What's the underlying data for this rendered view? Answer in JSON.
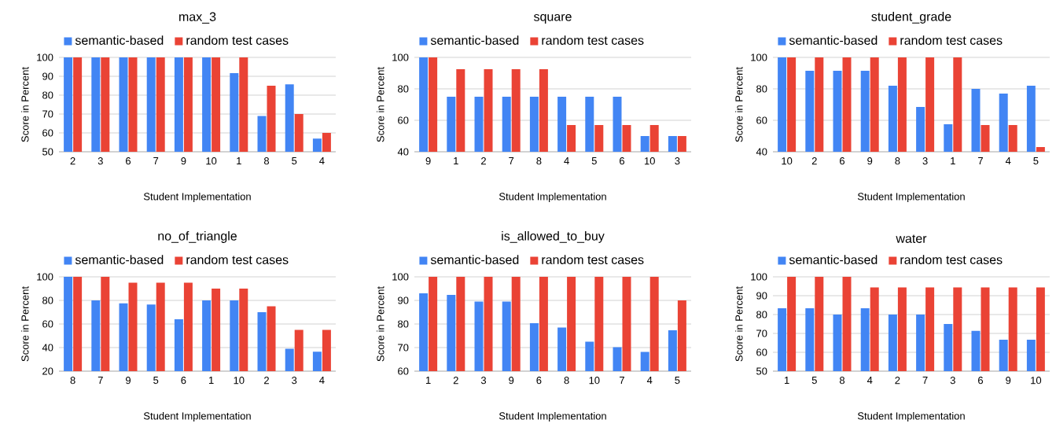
{
  "chart_data": [
    {
      "type": "bar",
      "title": "max_3",
      "xlabel": "Student Implementation",
      "ylabel": "Score in Percent",
      "categories": [
        "2",
        "3",
        "6",
        "7",
        "9",
        "10",
        "1",
        "8",
        "5",
        "4"
      ],
      "ylim": [
        50,
        100
      ],
      "yticks": [
        50,
        60,
        70,
        80,
        90,
        100
      ],
      "grid": "y",
      "legend": "top left",
      "series": [
        {
          "name": "semantic-based",
          "color": "#4285f4",
          "values": [
            100,
            100,
            100,
            100,
            100,
            100,
            91.7,
            69,
            85.7,
            57
          ]
        },
        {
          "name": "random test cases",
          "color": "#ea4335",
          "values": [
            100,
            100,
            100,
            100,
            100,
            100,
            100,
            85,
            70,
            60
          ]
        }
      ]
    },
    {
      "type": "bar",
      "title": "square",
      "xlabel": "Student Implementation",
      "ylabel": "Score in Percent",
      "categories": [
        "9",
        "1",
        "2",
        "7",
        "8",
        "4",
        "5",
        "6",
        "10",
        "3"
      ],
      "ylim": [
        40,
        100
      ],
      "yticks": [
        40,
        60,
        80,
        100
      ],
      "grid": "y",
      "legend": "top left",
      "series": [
        {
          "name": "semantic-based",
          "color": "#4285f4",
          "values": [
            100,
            75,
            75,
            75,
            75,
            75,
            75,
            75,
            50,
            50
          ]
        },
        {
          "name": "random test cases",
          "color": "#ea4335",
          "values": [
            100,
            92.5,
            92.5,
            92.5,
            92.5,
            57,
            57,
            57,
            57,
            50
          ]
        }
      ]
    },
    {
      "type": "bar",
      "title": "student_grade",
      "xlabel": "Student Implementation",
      "ylabel": "Score in Percent",
      "categories": [
        "10",
        "2",
        "6",
        "9",
        "8",
        "3",
        "1",
        "7",
        "4",
        "5"
      ],
      "ylim": [
        40,
        100
      ],
      "yticks": [
        40,
        60,
        80,
        100
      ],
      "grid": "y",
      "legend": "top left",
      "series": [
        {
          "name": "semantic-based",
          "color": "#4285f4",
          "values": [
            100,
            91.5,
            91.5,
            91.5,
            82,
            68.5,
            57.5,
            80,
            77,
            82
          ]
        },
        {
          "name": "random test cases",
          "color": "#ea4335",
          "values": [
            100,
            100,
            100,
            100,
            100,
            100,
            100,
            57,
            57,
            43
          ]
        }
      ]
    },
    {
      "type": "bar",
      "title": "no_of_triangle",
      "xlabel": "Student Implementation",
      "ylabel": "Score in Percent",
      "categories": [
        "8",
        "7",
        "9",
        "5",
        "6",
        "1",
        "10",
        "2",
        "3",
        "4"
      ],
      "ylim": [
        20,
        100
      ],
      "yticks": [
        20,
        40,
        60,
        80,
        100
      ],
      "grid": "y",
      "legend": "top left",
      "series": [
        {
          "name": "semantic-based",
          "color": "#4285f4",
          "values": [
            100,
            80,
            77.5,
            76.5,
            64,
            80,
            80,
            70,
            39,
            36.5
          ]
        },
        {
          "name": "random test cases",
          "color": "#ea4335",
          "values": [
            100,
            100,
            95,
            95,
            95,
            90,
            90,
            75,
            55,
            55
          ]
        }
      ]
    },
    {
      "type": "bar",
      "title": "is_allowed_to_buy",
      "xlabel": "Student Implementation",
      "ylabel": "Score in Percent",
      "categories": [
        "1",
        "2",
        "3",
        "9",
        "6",
        "8",
        "10",
        "7",
        "4",
        "5"
      ],
      "ylim": [
        60,
        100
      ],
      "yticks": [
        60,
        70,
        80,
        90,
        100
      ],
      "grid": "y",
      "legend": "top left",
      "series": [
        {
          "name": "semantic-based",
          "color": "#4285f4",
          "values": [
            93,
            92.3,
            89.5,
            89.5,
            80.3,
            78.5,
            72.5,
            70.2,
            68.2,
            77.3
          ]
        },
        {
          "name": "random test cases",
          "color": "#ea4335",
          "values": [
            100,
            100,
            100,
            100,
            100,
            100,
            100,
            100,
            100,
            90
          ]
        }
      ]
    },
    {
      "type": "bar",
      "title": "water",
      "xlabel": "Student Implementation",
      "ylabel": "Score in Percent",
      "categories": [
        "1",
        "5",
        "8",
        "4",
        "2",
        "7",
        "3",
        "6",
        "9",
        "10"
      ],
      "ylim": [
        50,
        100
      ],
      "yticks": [
        50,
        60,
        70,
        80,
        90,
        100
      ],
      "grid": "y",
      "legend": "top left",
      "series": [
        {
          "name": "semantic-based",
          "color": "#4285f4",
          "values": [
            83.3,
            83.3,
            80,
            83.3,
            80,
            80,
            75,
            71.4,
            66.7,
            66.7
          ]
        },
        {
          "name": "random test cases",
          "color": "#ea4335",
          "values": [
            100,
            100,
            100,
            94.4,
            94.4,
            94.4,
            94.4,
            94.4,
            94.4,
            94.4
          ]
        }
      ]
    }
  ]
}
